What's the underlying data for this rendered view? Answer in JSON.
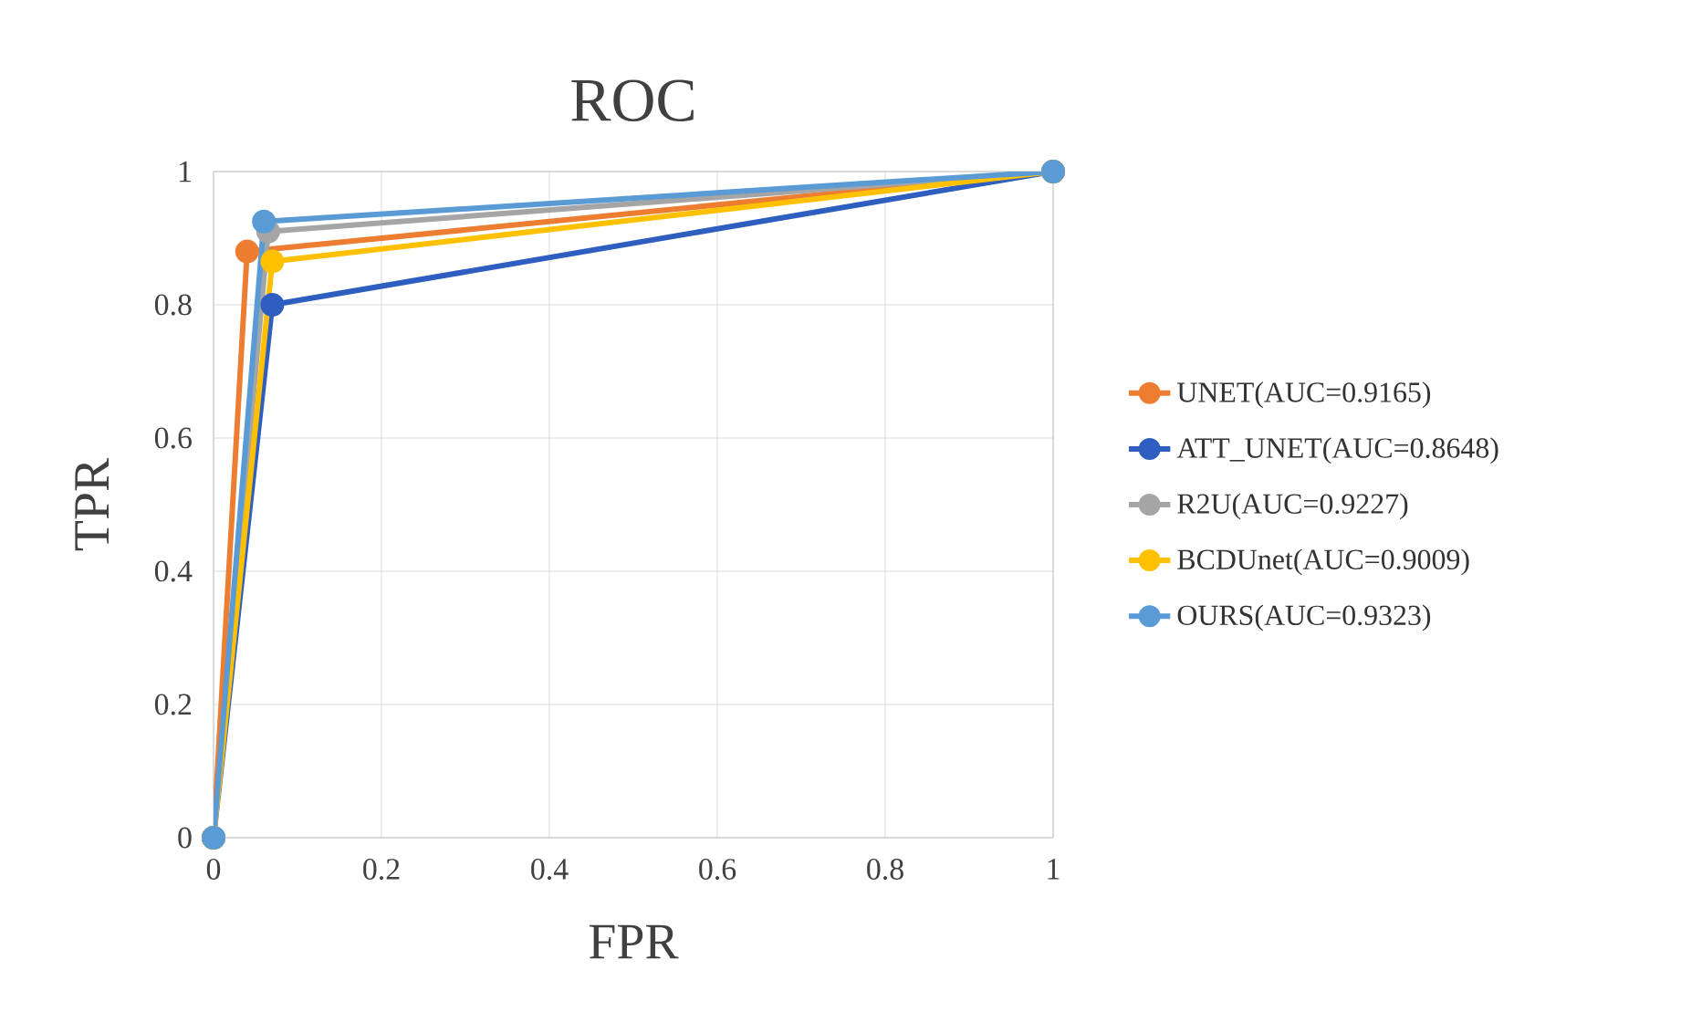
{
  "chart_data": {
    "type": "line",
    "title": "ROC",
    "xlabel": "FPR",
    "ylabel": "TPR",
    "xlim": [
      0,
      1
    ],
    "ylim": [
      0,
      1
    ],
    "xticks": [
      0,
      0.2,
      0.4,
      0.6,
      0.8,
      1
    ],
    "yticks": [
      0,
      0.2,
      0.4,
      0.6,
      0.8,
      1
    ],
    "grid": true,
    "legend": "right",
    "marker": "circle",
    "series": [
      {
        "name": "UNET(AUC=0.9165)",
        "color": "#ed7d31",
        "x": [
          0,
          0.04,
          1
        ],
        "values": [
          0,
          0.88,
          1
        ]
      },
      {
        "name": "ATT_UNET(AUC=0.8648)",
        "color": "#2e5fc0",
        "x": [
          0,
          0.07,
          1
        ],
        "values": [
          0,
          0.8,
          1
        ]
      },
      {
        "name": "R2U(AUC=0.9227)",
        "color": "#a5a5a5",
        "x": [
          0,
          0.065,
          1
        ],
        "values": [
          0,
          0.91,
          1
        ]
      },
      {
        "name": "BCDUnet(AUC=0.9009)",
        "color": "#ffc000",
        "x": [
          0,
          0.07,
          1
        ],
        "values": [
          0,
          0.865,
          1
        ]
      },
      {
        "name": "OURS(AUC=0.9323)",
        "color": "#5b9bd5",
        "x": [
          0,
          0.06,
          1
        ],
        "values": [
          0,
          0.925,
          1
        ]
      }
    ]
  }
}
